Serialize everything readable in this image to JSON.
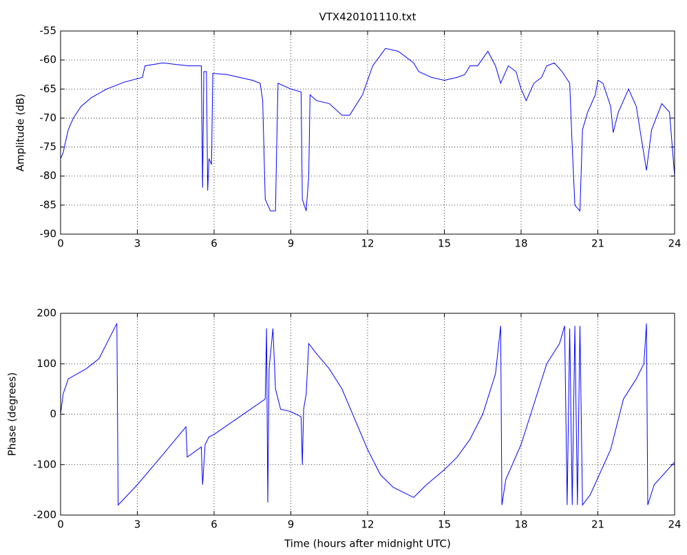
{
  "chart_data": [
    {
      "type": "line",
      "title": "VTX420101110.txt",
      "y_label": "Amplitude (dB)",
      "color": "#0000ff",
      "grid": true,
      "xlim": [
        0,
        24
      ],
      "xticks": [
        0,
        3,
        6,
        9,
        12,
        15,
        18,
        21,
        24
      ],
      "ylim": [
        -90,
        -55
      ],
      "yticks": [
        -90,
        -85,
        -80,
        -75,
        -70,
        -65,
        -60,
        -55
      ],
      "x": [
        0,
        0.1,
        0.2,
        0.3,
        0.5,
        0.8,
        1.2,
        1.8,
        2.5,
        3.2,
        3.3,
        4,
        5,
        5.5,
        5.55,
        5.6,
        5.7,
        5.75,
        5.8,
        5.9,
        5.95,
        6.5,
        7.5,
        7.8,
        7.9,
        8.0,
        8.2,
        8.4,
        8.45,
        8.5,
        9,
        9.4,
        9.45,
        9.6,
        9.7,
        9.75,
        10,
        10.5,
        11,
        11.3,
        11.8,
        12.2,
        12.7,
        13.2,
        13.8,
        14,
        14.5,
        15,
        15.5,
        15.8,
        16,
        16.3,
        16.7,
        17,
        17.2,
        17.5,
        17.8,
        18,
        18.2,
        18.5,
        18.8,
        19,
        19.3,
        19.6,
        19.9,
        20,
        20.1,
        20.3,
        20.4,
        20.6,
        20.9,
        21,
        21.2,
        21.5,
        21.6,
        21.8,
        22.2,
        22.5,
        22.9,
        23.1,
        23.5,
        23.8,
        24
      ],
      "values": [
        -77,
        -76,
        -74,
        -72,
        -70,
        -68,
        -66.5,
        -65,
        -63.8,
        -63,
        -61,
        -60.5,
        -61,
        -61,
        -82,
        -62,
        -62,
        -82.5,
        -77,
        -78,
        -62.3,
        -62.5,
        -63.5,
        -64,
        -67,
        -84,
        -86,
        -86,
        -74,
        -64,
        -65,
        -65.5,
        -84,
        -86,
        -80,
        -66,
        -67,
        -67.5,
        -69.5,
        -69.5,
        -66,
        -61,
        -58,
        -58.5,
        -60.5,
        -62,
        -63,
        -63.5,
        -63,
        -62.5,
        -61,
        -61,
        -58.5,
        -61,
        -64,
        -61,
        -62,
        -65,
        -67,
        -64,
        -63,
        -61,
        -60.5,
        -62,
        -64,
        -75,
        -85,
        -86,
        -72,
        -69,
        -66,
        -63.5,
        -64,
        -68,
        -72.5,
        -69,
        -65,
        -68,
        -79,
        -72,
        -67.5,
        -69,
        -80
      ]
    },
    {
      "type": "line",
      "x_label": "Time (hours after midnight UTC)",
      "y_label": "Phase (degrees)",
      "color": "#0000ff",
      "grid": true,
      "xlim": [
        0,
        24
      ],
      "xticks": [
        0,
        3,
        6,
        9,
        12,
        15,
        18,
        21,
        24
      ],
      "ylim": [
        -200,
        200
      ],
      "yticks": [
        -200,
        -100,
        0,
        100,
        200
      ],
      "x": [
        0,
        0.1,
        0.3,
        1,
        1.5,
        2.2,
        2.25,
        3,
        4,
        4.9,
        4.95,
        5.5,
        5.55,
        5.65,
        5.8,
        6,
        7,
        8,
        8.05,
        8.1,
        8.15,
        8.3,
        8.4,
        8.6,
        9,
        9.4,
        9.45,
        9.5,
        9.6,
        9.7,
        10,
        10.5,
        11,
        11.5,
        12,
        12.5,
        13,
        13.8,
        14.3,
        15,
        15.5,
        16,
        16.5,
        17,
        17.2,
        17.25,
        17.4,
        18,
        18.5,
        19,
        19.5,
        19.7,
        19.8,
        19.9,
        20,
        20.1,
        20.2,
        20.3,
        20.4,
        20.7,
        21.5,
        22,
        22.5,
        22.8,
        22.9,
        22.95,
        23.2,
        24
      ],
      "values": [
        0,
        40,
        70,
        90,
        110,
        180,
        -180,
        -140,
        -80,
        -25,
        -85,
        -65,
        -140,
        -60,
        -45,
        -40,
        -5,
        30,
        170,
        -175,
        90,
        170,
        50,
        10,
        5,
        -5,
        -100,
        10,
        40,
        140,
        120,
        90,
        50,
        -10,
        -70,
        -120,
        -145,
        -165,
        -140,
        -110,
        -85,
        -50,
        0,
        80,
        175,
        -180,
        -130,
        -60,
        20,
        100,
        140,
        175,
        -180,
        170,
        -180,
        175,
        -180,
        175,
        -180,
        -160,
        -70,
        30,
        70,
        100,
        180,
        -180,
        -140,
        -95
      ]
    }
  ]
}
